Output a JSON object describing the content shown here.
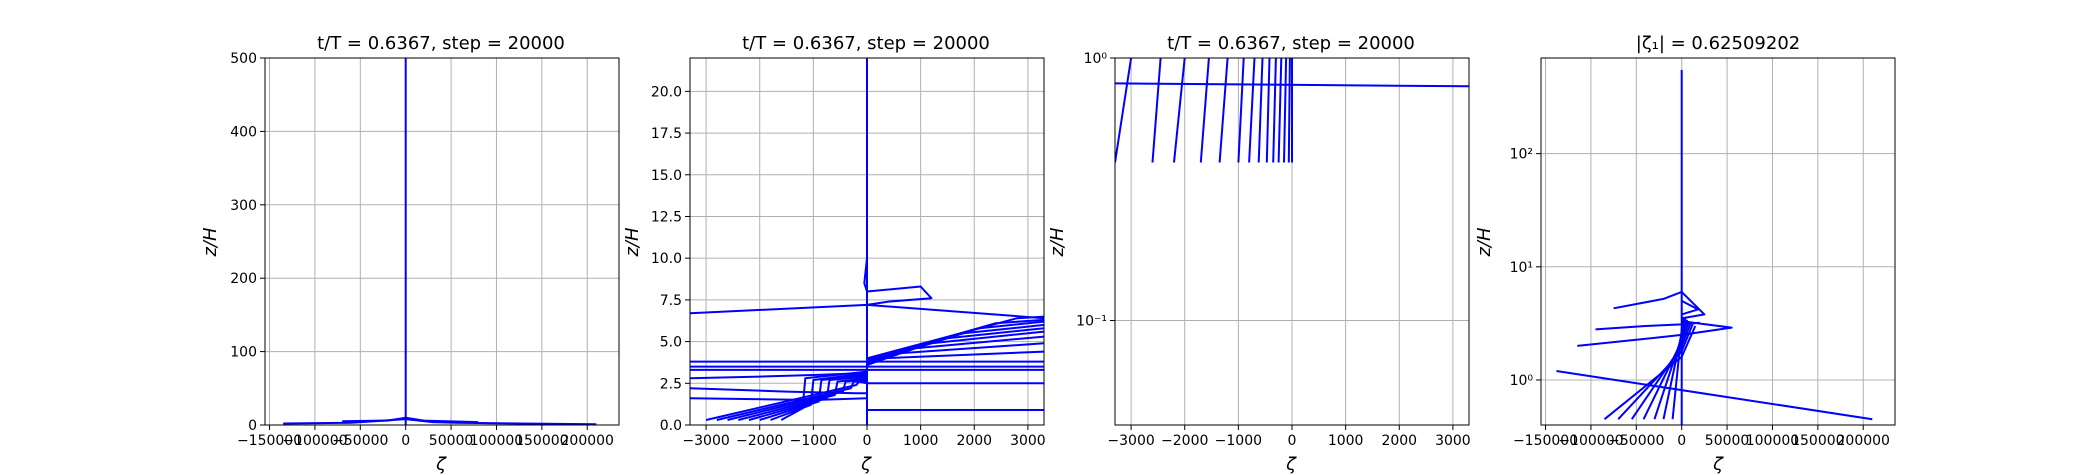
{
  "colors": {
    "line": "#0000ff",
    "grid": "#b0b0b0",
    "frame": "#000000"
  },
  "chart_data": [
    {
      "type": "line",
      "title": "t/T = 0.6367, step = 20000",
      "xlabel": "ζ",
      "ylabel": "z/H",
      "xscale": "linear",
      "yscale": "linear",
      "xlim": [
        -155000,
        235000
      ],
      "ylim": [
        0,
        500
      ],
      "grid": true,
      "xticks": [
        -150000,
        -100000,
        -50000,
        0,
        50000,
        100000,
        150000,
        200000
      ],
      "xtick_labels": [
        "−150000",
        "−100000",
        "−50000",
        "0",
        "50000",
        "100000",
        "150000",
        "200000"
      ],
      "yticks": [
        0,
        100,
        200,
        300,
        400,
        500
      ],
      "ytick_labels": [
        "0",
        "100",
        "200",
        "300",
        "400",
        "500"
      ],
      "series": [
        {
          "x": [
            0,
            0
          ],
          "y": [
            0,
            500
          ]
        },
        {
          "x": [
            -135000,
            -60000,
            0,
            30000,
            55000,
            210000
          ],
          "y": [
            2,
            3,
            8,
            4,
            3,
            1
          ]
        },
        {
          "x": [
            -70000,
            -20000,
            0,
            20000,
            80000
          ],
          "y": [
            5,
            6,
            10,
            6,
            4
          ]
        }
      ]
    },
    {
      "type": "line",
      "title": "t/T = 0.6367, step = 20000",
      "xlabel": "ζ",
      "ylabel": "z/H",
      "xscale": "linear",
      "yscale": "linear",
      "xlim": [
        -3300,
        3300
      ],
      "ylim": [
        0,
        22
      ],
      "grid": true,
      "xticks": [
        -3000,
        -2000,
        -1000,
        0,
        1000,
        2000,
        3000
      ],
      "xtick_labels": [
        "−3000",
        "−2000",
        "−1000",
        "0",
        "1000",
        "2000",
        "3000"
      ],
      "yticks": [
        0,
        2.5,
        5,
        7.5,
        10,
        12.5,
        15,
        17.5,
        20
      ],
      "ytick_labels": [
        "0.0",
        "2.5",
        "5.0",
        "7.5",
        "10.0",
        "12.5",
        "15.0",
        "17.5",
        "20.0"
      ],
      "series": [
        {
          "x": [
            0,
            0
          ],
          "y": [
            0,
            22
          ]
        },
        {
          "x": [
            -3300,
            0,
            3300
          ],
          "y": [
            6.7,
            7.2,
            6.4
          ]
        },
        {
          "x": [
            -3300,
            3300
          ],
          "y": [
            3.8,
            3.8
          ]
        },
        {
          "x": [
            -3300,
            3300
          ],
          "y": [
            3.5,
            3.5
          ]
        },
        {
          "x": [
            -3300,
            3300
          ],
          "y": [
            3.3,
            3.3
          ]
        },
        {
          "x": [
            0,
            3300
          ],
          "y": [
            2.5,
            2.5
          ]
        },
        {
          "x": [
            0,
            3300
          ],
          "y": [
            0.9,
            0.9
          ]
        },
        {
          "x": [
            0,
            0,
            -50,
            0,
            1000,
            1200,
            400,
            0
          ],
          "y": [
            10.0,
            10.0,
            8.5,
            8.0,
            8.3,
            7.6,
            7.4,
            7.2
          ]
        },
        {
          "x": [
            -3300,
            -2000,
            -1000,
            -100,
            0
          ],
          "y": [
            2.8,
            2.9,
            3.0,
            3.1,
            3.1
          ]
        },
        {
          "x": [
            -3300,
            -1500,
            -200,
            0
          ],
          "y": [
            2.2,
            2.0,
            1.9,
            1.9
          ]
        },
        {
          "x": [
            -3300,
            -1000,
            0
          ],
          "y": [
            1.6,
            1.5,
            1.6
          ]
        },
        {
          "x": [
            -3000,
            -200,
            -150,
            0
          ],
          "y": [
            0.3,
            2.4,
            2.6,
            2.5
          ]
        },
        {
          "x": [
            -2800,
            -300,
            -250,
            0
          ],
          "y": [
            0.3,
            2.2,
            2.6,
            2.6
          ]
        },
        {
          "x": [
            -2600,
            -450,
            -400,
            0
          ],
          "y": [
            0.3,
            2.0,
            2.6,
            2.7
          ]
        },
        {
          "x": [
            -2400,
            -600,
            -550,
            0
          ],
          "y": [
            0.3,
            1.8,
            2.6,
            2.8
          ]
        },
        {
          "x": [
            -2200,
            -750,
            -700,
            0
          ],
          "y": [
            0.3,
            1.6,
            2.7,
            2.9
          ]
        },
        {
          "x": [
            -2000,
            -900,
            -850,
            0
          ],
          "y": [
            0.3,
            1.4,
            2.7,
            3.0
          ]
        },
        {
          "x": [
            -1800,
            -1050,
            -1000,
            0
          ],
          "y": [
            0.3,
            1.2,
            2.7,
            3.1
          ]
        },
        {
          "x": [
            -1600,
            -1200,
            -1150,
            0
          ],
          "y": [
            0.3,
            1.0,
            2.8,
            3.2
          ]
        },
        {
          "x": [
            0,
            300,
            3300
          ],
          "y": [
            3.6,
            4.0,
            4.4
          ]
        },
        {
          "x": [
            0,
            600,
            3300
          ],
          "y": [
            3.6,
            4.3,
            4.9
          ]
        },
        {
          "x": [
            0,
            900,
            3300
          ],
          "y": [
            3.6,
            4.6,
            5.3
          ]
        },
        {
          "x": [
            0,
            1200,
            3300
          ],
          "y": [
            3.7,
            4.9,
            5.6
          ]
        },
        {
          "x": [
            0,
            1500,
            3300
          ],
          "y": [
            3.7,
            5.2,
            5.8
          ]
        },
        {
          "x": [
            0,
            1800,
            3300
          ],
          "y": [
            3.8,
            5.5,
            6.0
          ]
        },
        {
          "x": [
            0,
            2100,
            3300
          ],
          "y": [
            3.8,
            5.8,
            6.2
          ]
        },
        {
          "x": [
            0,
            2400,
            3300
          ],
          "y": [
            3.9,
            6.1,
            6.3
          ]
        },
        {
          "x": [
            0,
            2800,
            3300
          ],
          "y": [
            4.0,
            6.4,
            6.5
          ]
        }
      ]
    },
    {
      "type": "line",
      "title": "t/T = 0.6367, step = 20000",
      "xlabel": "ζ",
      "ylabel": "z/H",
      "xscale": "linear",
      "yscale": "log",
      "xlim": [
        -3300,
        3300
      ],
      "ylim": [
        0.04,
        1
      ],
      "grid": true,
      "xticks": [
        -3000,
        -2000,
        -1000,
        0,
        1000,
        2000,
        3000
      ],
      "xtick_labels": [
        "−3000",
        "−2000",
        "−1000",
        "0",
        "1000",
        "2000",
        "3000"
      ],
      "yticks": [
        0.1,
        1
      ],
      "ytick_labels": [
        "10⁻¹",
        "10⁰"
      ],
      "series": [
        {
          "x": [
            -3300,
            3300
          ],
          "y": [
            0.8,
            0.78
          ]
        },
        {
          "x": [
            -3300,
            -3000
          ],
          "y": [
            0.4,
            1.0
          ]
        },
        {
          "x": [
            -2600,
            -2450
          ],
          "y": [
            0.4,
            1.0
          ]
        },
        {
          "x": [
            -2200,
            -2000
          ],
          "y": [
            0.4,
            1.0
          ]
        },
        {
          "x": [
            -1700,
            -1550
          ],
          "y": [
            0.4,
            1.0
          ]
        },
        {
          "x": [
            -1350,
            -1200
          ],
          "y": [
            0.4,
            1.0
          ]
        },
        {
          "x": [
            -1000,
            -900
          ],
          "y": [
            0.4,
            1.0
          ]
        },
        {
          "x": [
            -800,
            -700
          ],
          "y": [
            0.4,
            1.0
          ]
        },
        {
          "x": [
            -620,
            -550
          ],
          "y": [
            0.4,
            1.0
          ]
        },
        {
          "x": [
            -470,
            -420
          ],
          "y": [
            0.4,
            1.0
          ]
        },
        {
          "x": [
            -350,
            -300
          ],
          "y": [
            0.4,
            1.0
          ]
        },
        {
          "x": [
            -250,
            -200
          ],
          "y": [
            0.4,
            1.0
          ]
        },
        {
          "x": [
            -150,
            -110
          ],
          "y": [
            0.4,
            1.0
          ]
        },
        {
          "x": [
            -60,
            -40
          ],
          "y": [
            0.4,
            1.0
          ]
        },
        {
          "x": [
            0,
            0
          ],
          "y": [
            0.4,
            1.0
          ]
        }
      ]
    },
    {
      "type": "line",
      "title": "|ζ₁| = 0.62509202",
      "xlabel": "ζ",
      "ylabel": "z/H",
      "xscale": "linear",
      "yscale": "log",
      "xlim": [
        -155000,
        235000
      ],
      "ylim": [
        0.4,
        700
      ],
      "grid": true,
      "xticks": [
        -150000,
        -100000,
        -50000,
        0,
        50000,
        100000,
        150000,
        200000
      ],
      "xtick_labels": [
        "−150000",
        "−100000",
        "−50000",
        "0",
        "50000",
        "100000",
        "150000",
        "200000"
      ],
      "yticks": [
        1,
        10,
        100
      ],
      "ytick_labels": [
        "10⁰",
        "10¹",
        "10²"
      ],
      "series": [
        {
          "x": [
            0,
            0
          ],
          "y": [
            0.4,
            550
          ]
        },
        {
          "x": [
            -138000,
            210000
          ],
          "y": [
            1.2,
            0.45
          ]
        },
        {
          "x": [
            -115000,
            -20000,
            0,
            55000,
            0,
            0
          ],
          "y": [
            2.0,
            2.4,
            2.5,
            2.9,
            3.3,
            3.3
          ]
        },
        {
          "x": [
            -75000,
            -20000,
            0,
            25000,
            0
          ],
          "y": [
            4.3,
            5.2,
            6.0,
            3.8,
            3.5
          ]
        },
        {
          "x": [
            -85000,
            0,
            15000
          ],
          "y": [
            0.45,
            1.6,
            3.0
          ]
        },
        {
          "x": [
            -70000,
            0,
            12000
          ],
          "y": [
            0.45,
            1.8,
            3.1
          ]
        },
        {
          "x": [
            -55000,
            0,
            10000
          ],
          "y": [
            0.45,
            2.0,
            3.2
          ]
        },
        {
          "x": [
            -42000,
            0,
            8000
          ],
          "y": [
            0.45,
            2.2,
            3.3
          ]
        },
        {
          "x": [
            -30000,
            0,
            6000
          ],
          "y": [
            0.45,
            2.4,
            3.4
          ]
        },
        {
          "x": [
            -20000,
            0,
            4000
          ],
          "y": [
            0.45,
            2.6,
            3.5
          ]
        },
        {
          "x": [
            -10000,
            0,
            2000
          ],
          "y": [
            0.45,
            2.8,
            3.6
          ]
        },
        {
          "x": [
            -95000,
            -40000,
            0,
            20000
          ],
          "y": [
            2.8,
            3.0,
            3.1,
            3.2
          ]
        },
        {
          "x": [
            0,
            18000,
            0
          ],
          "y": [
            5.0,
            4.2,
            3.8
          ]
        }
      ]
    }
  ]
}
